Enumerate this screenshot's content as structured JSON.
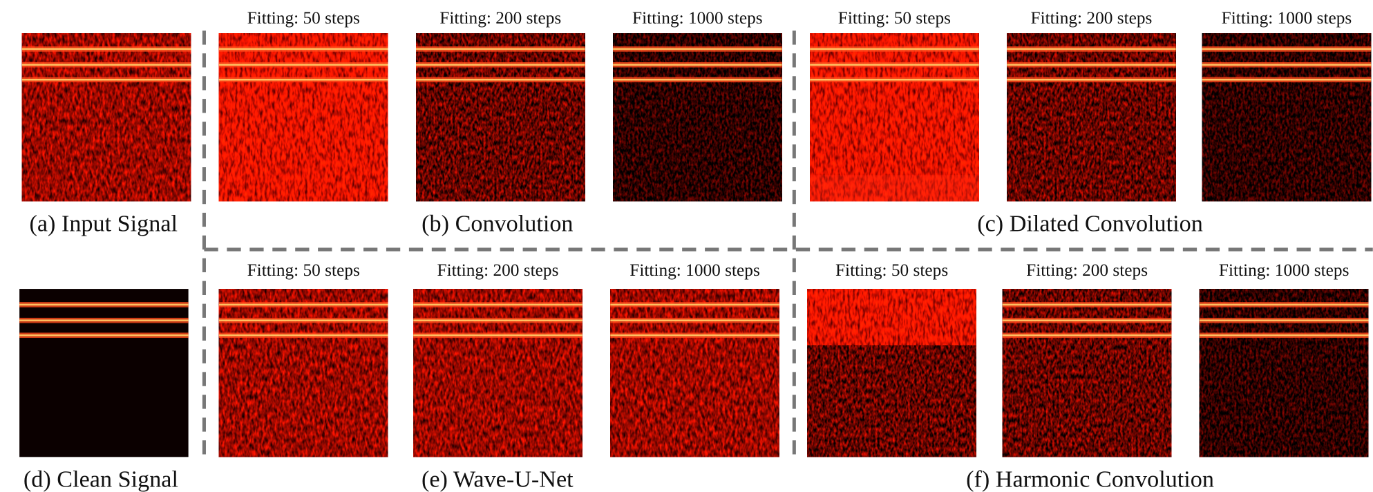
{
  "panels": [
    {
      "caption": "(a) Input Signal"
    },
    {
      "caption": "(b) Convolution",
      "subplots": [
        "Fitting: 50 steps",
        "Fitting: 200 steps",
        "Fitting: 1000 steps"
      ]
    },
    {
      "caption": "(c) Dilated Convolution",
      "subplots": [
        "Fitting: 50 steps",
        "Fitting: 200 steps",
        "Fitting: 1000 steps"
      ]
    },
    {
      "caption": "(d) Clean Signal"
    },
    {
      "caption": "(e) Wave-U-Net",
      "subplots": [
        "Fitting: 50 steps",
        "Fitting: 200 steps",
        "Fitting: 1000 steps"
      ]
    },
    {
      "caption": "(f) Harmonic Convolution",
      "subplots": [
        "Fitting: 50 steps",
        "Fitting: 200 steps",
        "Fitting: 1000 steps"
      ]
    }
  ]
}
